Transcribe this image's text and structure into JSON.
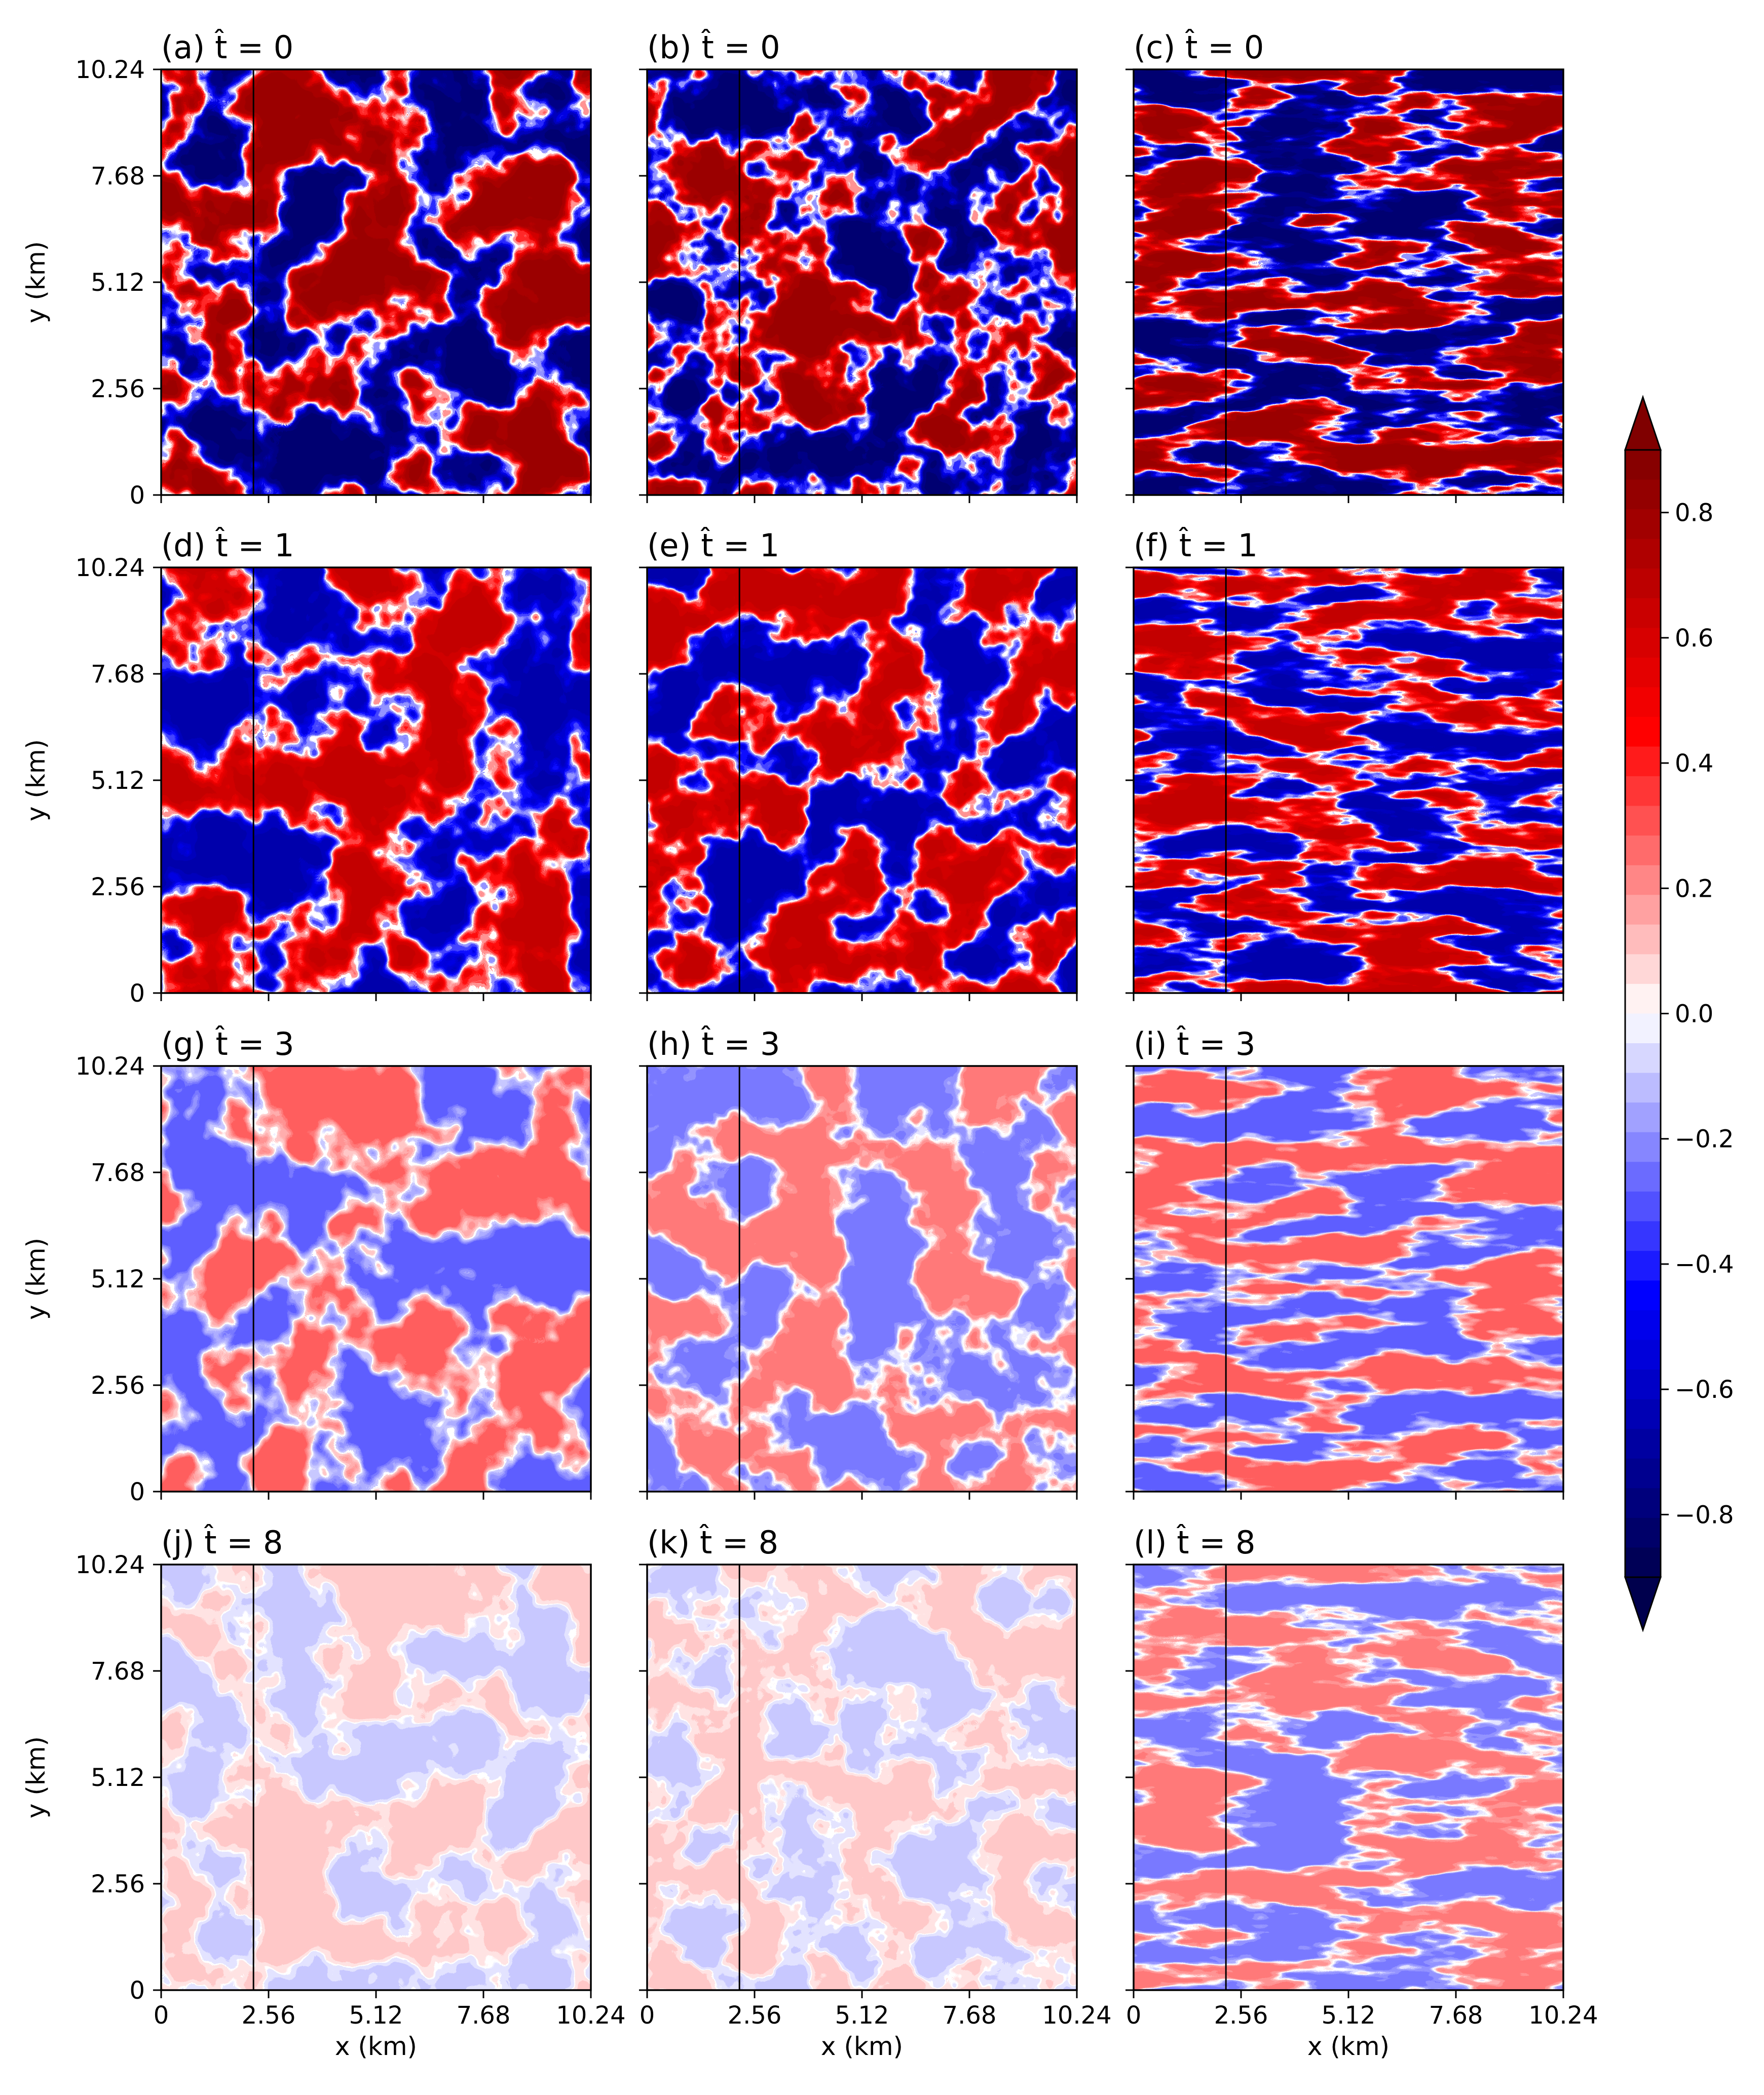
{
  "chart_data": {
    "type": "heatmap",
    "layout": "4x3 grid of filled-contour panels",
    "x_axis": {
      "label": "x (km)",
      "range": [
        0,
        10.24
      ],
      "ticks": [
        0,
        2.56,
        5.12,
        7.68,
        10.24
      ],
      "tick_labels": [
        "0",
        "2.56",
        "5.12",
        "7.68",
        "10.24"
      ]
    },
    "y_axis": {
      "label": "y (km)",
      "range": [
        0,
        10.24
      ],
      "ticks": [
        0,
        2.56,
        5.12,
        7.68,
        10.24
      ],
      "tick_labels": [
        "0",
        "2.56",
        "5.12",
        "7.68",
        "10.24"
      ]
    },
    "vertical_marker_x_km": [
      2.2,
      2.2,
      2.2
    ],
    "panels": [
      {
        "id": "a",
        "title": "(a) t̂ = 0",
        "t_hat": 0,
        "column": 1,
        "amplitude": 0.8,
        "pattern": "cellular"
      },
      {
        "id": "b",
        "title": "(b) t̂ = 0",
        "t_hat": 0,
        "column": 2,
        "amplitude": 0.8,
        "pattern": "patchy"
      },
      {
        "id": "c",
        "title": "(c) t̂ = 0",
        "t_hat": 0,
        "column": 3,
        "amplitude": 0.8,
        "pattern": "streaks"
      },
      {
        "id": "d",
        "title": "(d) t̂ = 1",
        "t_hat": 1,
        "column": 1,
        "amplitude": 0.65,
        "pattern": "cellular"
      },
      {
        "id": "e",
        "title": "(e) t̂ = 1",
        "t_hat": 1,
        "column": 2,
        "amplitude": 0.65,
        "pattern": "patchy"
      },
      {
        "id": "f",
        "title": "(f) t̂ = 1",
        "t_hat": 1,
        "column": 3,
        "amplitude": 0.65,
        "pattern": "streaks"
      },
      {
        "id": "g",
        "title": "(g) t̂ = 3",
        "t_hat": 3,
        "column": 1,
        "amplitude": 0.3,
        "pattern": "cellular"
      },
      {
        "id": "h",
        "title": "(h) t̂ = 3",
        "t_hat": 3,
        "column": 2,
        "amplitude": 0.25,
        "pattern": "patchy"
      },
      {
        "id": "i",
        "title": "(i) t̂ = 3",
        "t_hat": 3,
        "column": 3,
        "amplitude": 0.3,
        "pattern": "streaks"
      },
      {
        "id": "j",
        "title": "(j) t̂ = 8",
        "t_hat": 8,
        "column": 1,
        "amplitude": 0.1,
        "pattern": "cellular"
      },
      {
        "id": "k",
        "title": "(k) t̂ = 8",
        "t_hat": 8,
        "column": 2,
        "amplitude": 0.1,
        "pattern": "patchy"
      },
      {
        "id": "l",
        "title": "(l) t̂ = 8",
        "t_hat": 8,
        "column": 3,
        "amplitude": 0.25,
        "pattern": "streaks"
      }
    ],
    "colorbar": {
      "colormap": "seismic",
      "range": [
        -0.9,
        0.9
      ],
      "levels": 38,
      "extend": "both",
      "ticks": [
        0.8,
        0.6,
        0.4,
        0.2,
        0.0,
        -0.2,
        -0.4,
        -0.6,
        -0.8
      ],
      "tick_labels": [
        "0.8",
        "0.6",
        "0.4",
        "0.2",
        "0.0",
        "−0.2",
        "−0.4",
        "−0.6",
        "−0.8"
      ]
    }
  }
}
